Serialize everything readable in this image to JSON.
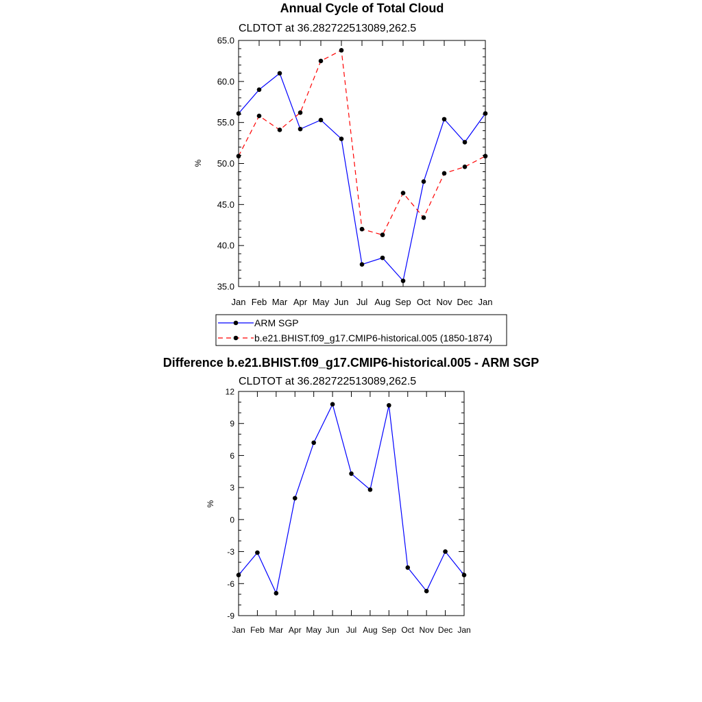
{
  "chart_data": [
    {
      "type": "line",
      "title": "Annual Cycle of Total Cloud",
      "subtitle": "CLDTOT at 36.282722513089,262.5",
      "xlabel": "",
      "ylabel": "%",
      "categories": [
        "Jan",
        "Feb",
        "Mar",
        "Apr",
        "May",
        "Jun",
        "Jul",
        "Aug",
        "Sep",
        "Oct",
        "Nov",
        "Dec",
        "Jan"
      ],
      "ylim": [
        35,
        65
      ],
      "yticks": [
        "35.0",
        "40.0",
        "45.0",
        "50.0",
        "55.0",
        "60.0",
        "65.0"
      ],
      "grid": false,
      "legend_position": "below",
      "series": [
        {
          "name": "ARM SGP",
          "color": "#0000ff",
          "dash": "solid",
          "values": [
            56.1,
            59.0,
            61.0,
            54.2,
            55.3,
            53.0,
            37.7,
            38.5,
            35.7,
            47.8,
            55.4,
            52.6,
            56.1
          ]
        },
        {
          "name": "b.e21.BHIST.f09_g17.CMIP6-historical.005 (1850-1874)",
          "color": "#ff0000",
          "dash": "dashed",
          "values": [
            50.9,
            55.8,
            54.1,
            56.2,
            62.5,
            63.8,
            42.0,
            41.3,
            46.4,
            43.4,
            48.8,
            49.6,
            50.9
          ]
        }
      ]
    },
    {
      "type": "line",
      "title": "Difference b.e21.BHIST.f09_g17.CMIP6-historical.005 - ARM SGP",
      "subtitle": "CLDTOT at 36.282722513089,262.5",
      "xlabel": "",
      "ylabel": "%",
      "categories": [
        "Jan",
        "Feb",
        "Mar",
        "Apr",
        "May",
        "Jun",
        "Jul",
        "Aug",
        "Sep",
        "Oct",
        "Nov",
        "Dec",
        "Jan"
      ],
      "ylim": [
        -9,
        12
      ],
      "yticks": [
        "-9",
        "-6",
        "-3",
        "0",
        "3",
        "6",
        "9",
        "12"
      ],
      "grid": false,
      "series": [
        {
          "name": "Difference",
          "color": "#0000ff",
          "dash": "solid",
          "values": [
            -5.2,
            -3.1,
            -6.9,
            2.0,
            7.2,
            10.8,
            4.3,
            2.8,
            10.7,
            -4.5,
            -6.7,
            -3.0,
            -5.2
          ]
        }
      ]
    }
  ]
}
